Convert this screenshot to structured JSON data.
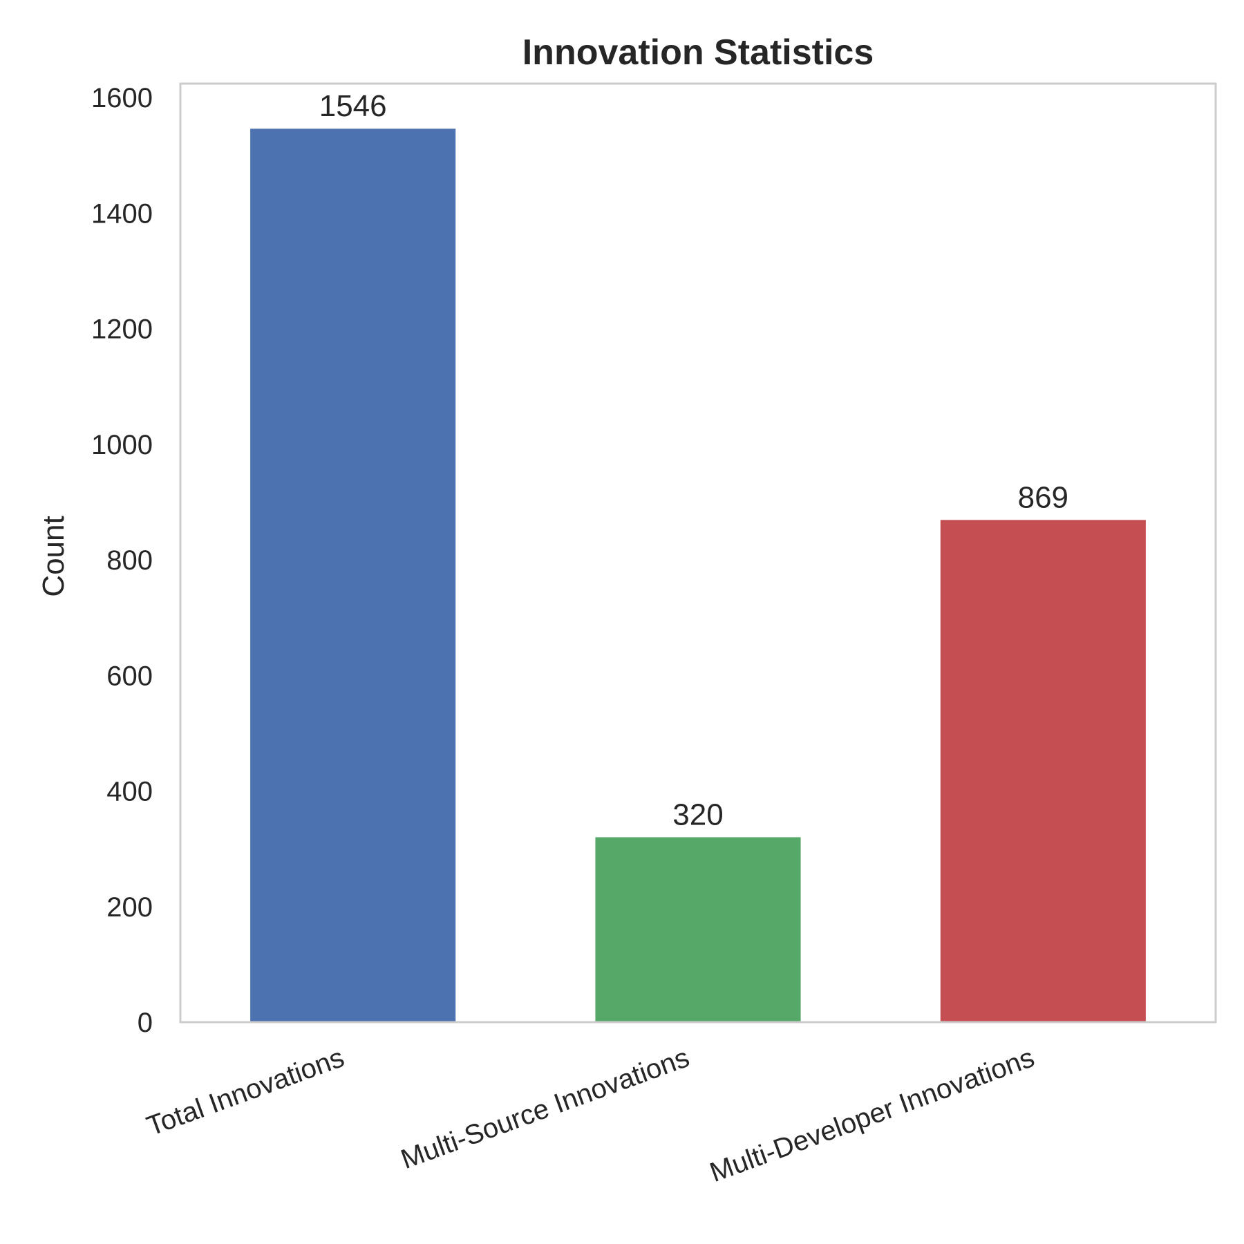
{
  "chart_data": {
    "type": "bar",
    "title": "Innovation Statistics",
    "xlabel": "",
    "ylabel": "Count",
    "categories": [
      "Total Innovations",
      "Multi-Source Innovations",
      "Multi-Developer Innovations"
    ],
    "values": [
      1546,
      320,
      869
    ],
    "value_labels": [
      "1546",
      "320",
      "869"
    ],
    "colors": [
      "#4c72b0",
      "#55a868",
      "#c44e52"
    ],
    "ylim": [
      0,
      1624
    ],
    "yticks": [
      0,
      200,
      400,
      600,
      800,
      1000,
      1200,
      1400,
      1600
    ],
    "ytick_labels": [
      "0",
      "200",
      "400",
      "600",
      "800",
      "1000",
      "1200",
      "1400",
      "1600"
    ],
    "grid": false,
    "frame_color": "#cccccc"
  }
}
